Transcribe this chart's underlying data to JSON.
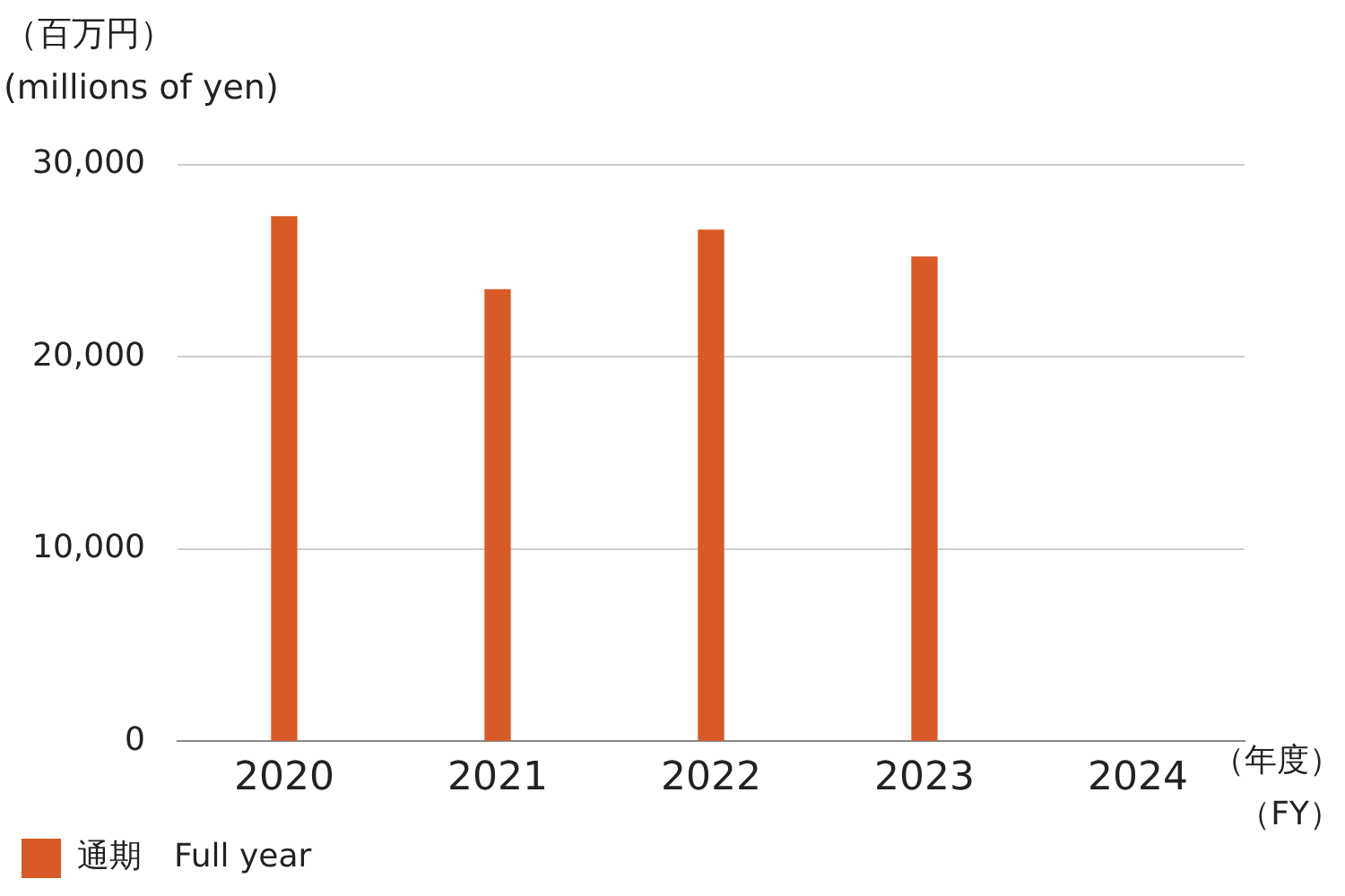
{
  "chart_data": {
    "type": "bar",
    "ylabel": "（百万円）\n(millions of yen)",
    "xlabel": "（年度）（FY）",
    "categories": [
      "2020",
      "2021",
      "2022",
      "2023",
      "2024"
    ],
    "series": [
      {
        "name": "通期　Full year",
        "color": "#d85a26",
        "values": [
          27300,
          23500,
          26600,
          25200,
          null
        ]
      }
    ],
    "ylim": [
      0,
      30000
    ],
    "yticks": [
      {
        "value": 0,
        "label": "0"
      },
      {
        "value": 10000,
        "label": "10,000"
      },
      {
        "value": 20000,
        "label": "20,000"
      },
      {
        "value": 30000,
        "label": "30,000"
      }
    ],
    "grid": "y",
    "legend": "bottom left"
  }
}
